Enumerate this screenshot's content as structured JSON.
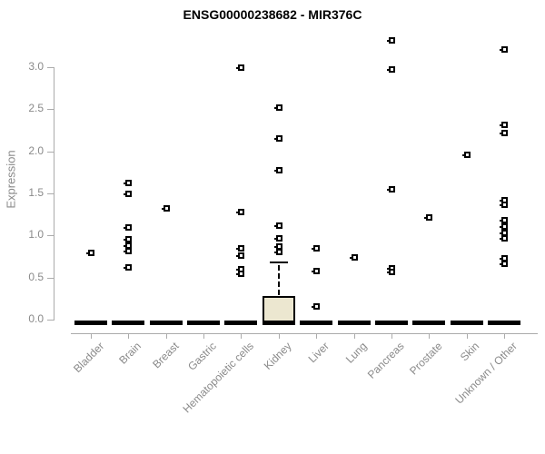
{
  "title": "ENSG00000238682 - MIR376C",
  "chart_data": {
    "type": "scatter",
    "subtype": "box-strip-plot",
    "title": "ENSG00000238682 - MIR376C",
    "xlabel": "",
    "ylabel": "Expression",
    "ylim": [
      0,
      3.45
    ],
    "yticks": [
      0.0,
      0.5,
      1.0,
      1.5,
      2.0,
      2.5,
      3.0
    ],
    "ytick_labels": [
      "0.0",
      "0.5",
      "1.0",
      "1.5",
      "2.0",
      "2.5",
      "3.0"
    ],
    "grid": false,
    "legend": "none",
    "marker": "small-open-square",
    "categories": [
      "Bladder",
      "Brain",
      "Breast",
      "Gastric",
      "Hematopoietic cells",
      "Kidney",
      "Liver",
      "Lung",
      "Pancreas",
      "Prostate",
      "Skin",
      "Unknown / Other"
    ],
    "groups": [
      {
        "label": "Bladder",
        "median": 0.0,
        "points": [
          0.8
        ]
      },
      {
        "label": "Brain",
        "median": 0.0,
        "points": [
          1.63,
          1.5,
          1.1,
          0.96,
          0.88,
          0.82,
          0.63
        ]
      },
      {
        "label": "Breast",
        "median": 0.0,
        "points": [
          1.33
        ]
      },
      {
        "label": "Gastric",
        "median": 0.0,
        "points": []
      },
      {
        "label": "Hematopoietic cells",
        "median": 0.0,
        "points": [
          3.0,
          1.28,
          0.85,
          0.77,
          0.6,
          0.55
        ]
      },
      {
        "label": "Kidney",
        "median": 0.0,
        "points": [
          2.53,
          2.16,
          1.78,
          1.12,
          0.97,
          0.87,
          0.81
        ],
        "box": {
          "q1": 0.0,
          "q3": 0.28,
          "whisker_high": 0.68,
          "whisker_low": 0.0
        }
      },
      {
        "label": "Liver",
        "median": 0.0,
        "points": [
          0.85,
          0.58,
          0.16
        ]
      },
      {
        "label": "Lung",
        "median": 0.0,
        "points": [
          0.74
        ]
      },
      {
        "label": "Pancreas",
        "median": 0.0,
        "points": [
          3.32,
          2.98,
          1.55,
          0.62,
          0.57
        ]
      },
      {
        "label": "Prostate",
        "median": 0.0,
        "points": [
          1.22
        ]
      },
      {
        "label": "Skin",
        "median": 0.0,
        "points": [
          1.96
        ]
      },
      {
        "label": "Unknown / Other",
        "median": 0.0,
        "points": [
          3.22,
          2.32,
          2.22,
          1.42,
          1.37,
          1.19,
          1.11,
          1.04,
          0.97,
          0.73,
          0.67
        ]
      }
    ],
    "colors": {
      "marker": "#000000",
      "median_bar": "#000000",
      "box_fill": "#ece7d0",
      "box_border": "#000000",
      "axis_line": "#ababab",
      "axis_text": "#8a8a8a",
      "title_text": "#000000",
      "background": "#ffffff"
    }
  }
}
